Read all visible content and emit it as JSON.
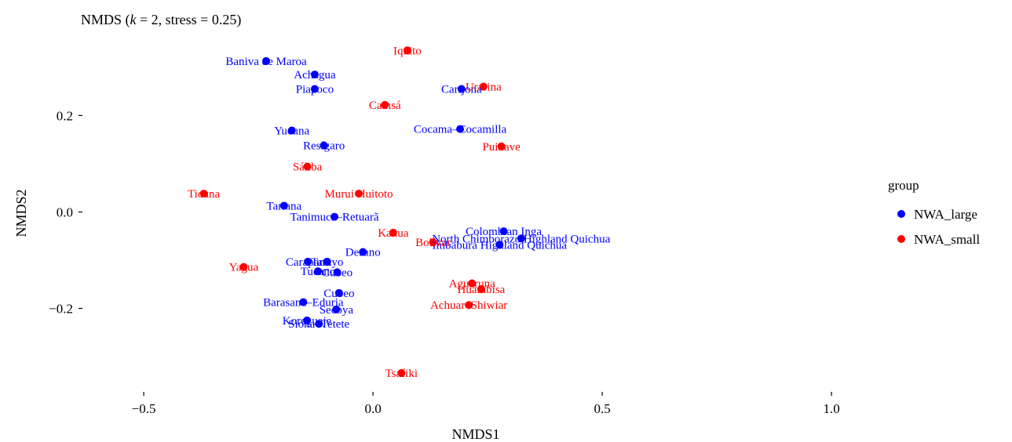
{
  "chart_data": {
    "type": "scatter",
    "title_prefix": "NMDS (",
    "title_k": "k",
    "title_suffix": " = 2, stress = 0.25)",
    "xlabel": "NMDS1",
    "ylabel": "NMDS2",
    "xlim": [
      -0.62,
      1.07
    ],
    "ylim": [
      -0.36,
      0.355
    ],
    "xticks": [
      -0.5,
      0.0,
      0.5,
      1.0
    ],
    "xtick_labels": [
      "−0.5",
      "0.0",
      "0.5",
      "1.0"
    ],
    "yticks": [
      -0.2,
      0.0,
      0.2
    ],
    "ytick_labels": [
      "−0.2",
      "0.0",
      "0.2"
    ],
    "grid": false,
    "legend": {
      "title": "group",
      "placement": "right",
      "entries": [
        {
          "name": "NWA_large",
          "color": "#0000FF"
        },
        {
          "name": "NWA_small",
          "color": "#FF0000"
        }
      ]
    },
    "series": [
      {
        "name": "NWA_large",
        "color": "#0000FF",
        "points": [
          {
            "label": "Baniva de Maroa",
            "x": -0.233,
            "y": 0.313
          },
          {
            "label": "Achagua",
            "x": -0.127,
            "y": 0.285
          },
          {
            "label": "Piapoco",
            "x": -0.127,
            "y": 0.255
          },
          {
            "label": "Carijona",
            "x": 0.193,
            "y": 0.255
          },
          {
            "label": "Cocama–Cocamilla",
            "x": 0.19,
            "y": 0.172
          },
          {
            "label": "Yucuna",
            "x": -0.177,
            "y": 0.169
          },
          {
            "label": "Resígaro",
            "x": -0.107,
            "y": 0.138
          },
          {
            "label": "Tariana",
            "x": -0.194,
            "y": 0.013
          },
          {
            "label": "Tanimuca–Retuarã",
            "x": -0.084,
            "y": -0.01
          },
          {
            "label": "Colombian Inga",
            "x": 0.285,
            "y": -0.04
          },
          {
            "label": "North Chimborazo Highland Quichua",
            "x": 0.323,
            "y": -0.055
          },
          {
            "label": "Imbabura Highland Quichua",
            "x": 0.276,
            "y": -0.068
          },
          {
            "label": "Desano",
            "x": -0.022,
            "y": -0.083
          },
          {
            "label": "Carapana",
            "x": -0.142,
            "y": -0.103
          },
          {
            "label": "Tatuyo",
            "x": -0.1,
            "y": -0.103
          },
          {
            "label": "Tucano",
            "x": -0.12,
            "y": -0.123
          },
          {
            "label": "Cubeo",
            "x": -0.078,
            "y": -0.125
          },
          {
            "label": "Cubeo",
            "x": -0.074,
            "y": -0.168
          },
          {
            "label": "Barasana–Eduria",
            "x": -0.152,
            "y": -0.187
          },
          {
            "label": "Secoya",
            "x": -0.08,
            "y": -0.202
          },
          {
            "label": "Koreguaje",
            "x": -0.144,
            "y": -0.225
          },
          {
            "label": "Siona–Tetete",
            "x": -0.118,
            "y": -0.232
          }
        ]
      },
      {
        "name": "NWA_small",
        "color": "#FF0000",
        "points": [
          {
            "label": "Iquito",
            "x": 0.075,
            "y": 0.335
          },
          {
            "label": "Urarina",
            "x": 0.241,
            "y": 0.26
          },
          {
            "label": "Camsá",
            "x": 0.026,
            "y": 0.222
          },
          {
            "label": "Puinave",
            "x": 0.28,
            "y": 0.136
          },
          {
            "label": "Sáliba",
            "x": -0.143,
            "y": 0.094
          },
          {
            "label": "Ticuna",
            "x": -0.369,
            "y": 0.038
          },
          {
            "label": "Murui Huitoto",
            "x": -0.031,
            "y": 0.038
          },
          {
            "label": "Kakua",
            "x": 0.044,
            "y": -0.043
          },
          {
            "label": "Bolívar",
            "x": 0.131,
            "y": -0.063
          },
          {
            "label": "Yagua",
            "x": -0.282,
            "y": -0.114
          },
          {
            "label": "Aguaruna",
            "x": 0.216,
            "y": -0.148
          },
          {
            "label": "Huambisa",
            "x": 0.236,
            "y": -0.16
          },
          {
            "label": "Achuar–Shiwiar",
            "x": 0.209,
            "y": -0.193
          },
          {
            "label": "Tsafiki",
            "x": 0.062,
            "y": -0.334
          }
        ]
      }
    ]
  }
}
